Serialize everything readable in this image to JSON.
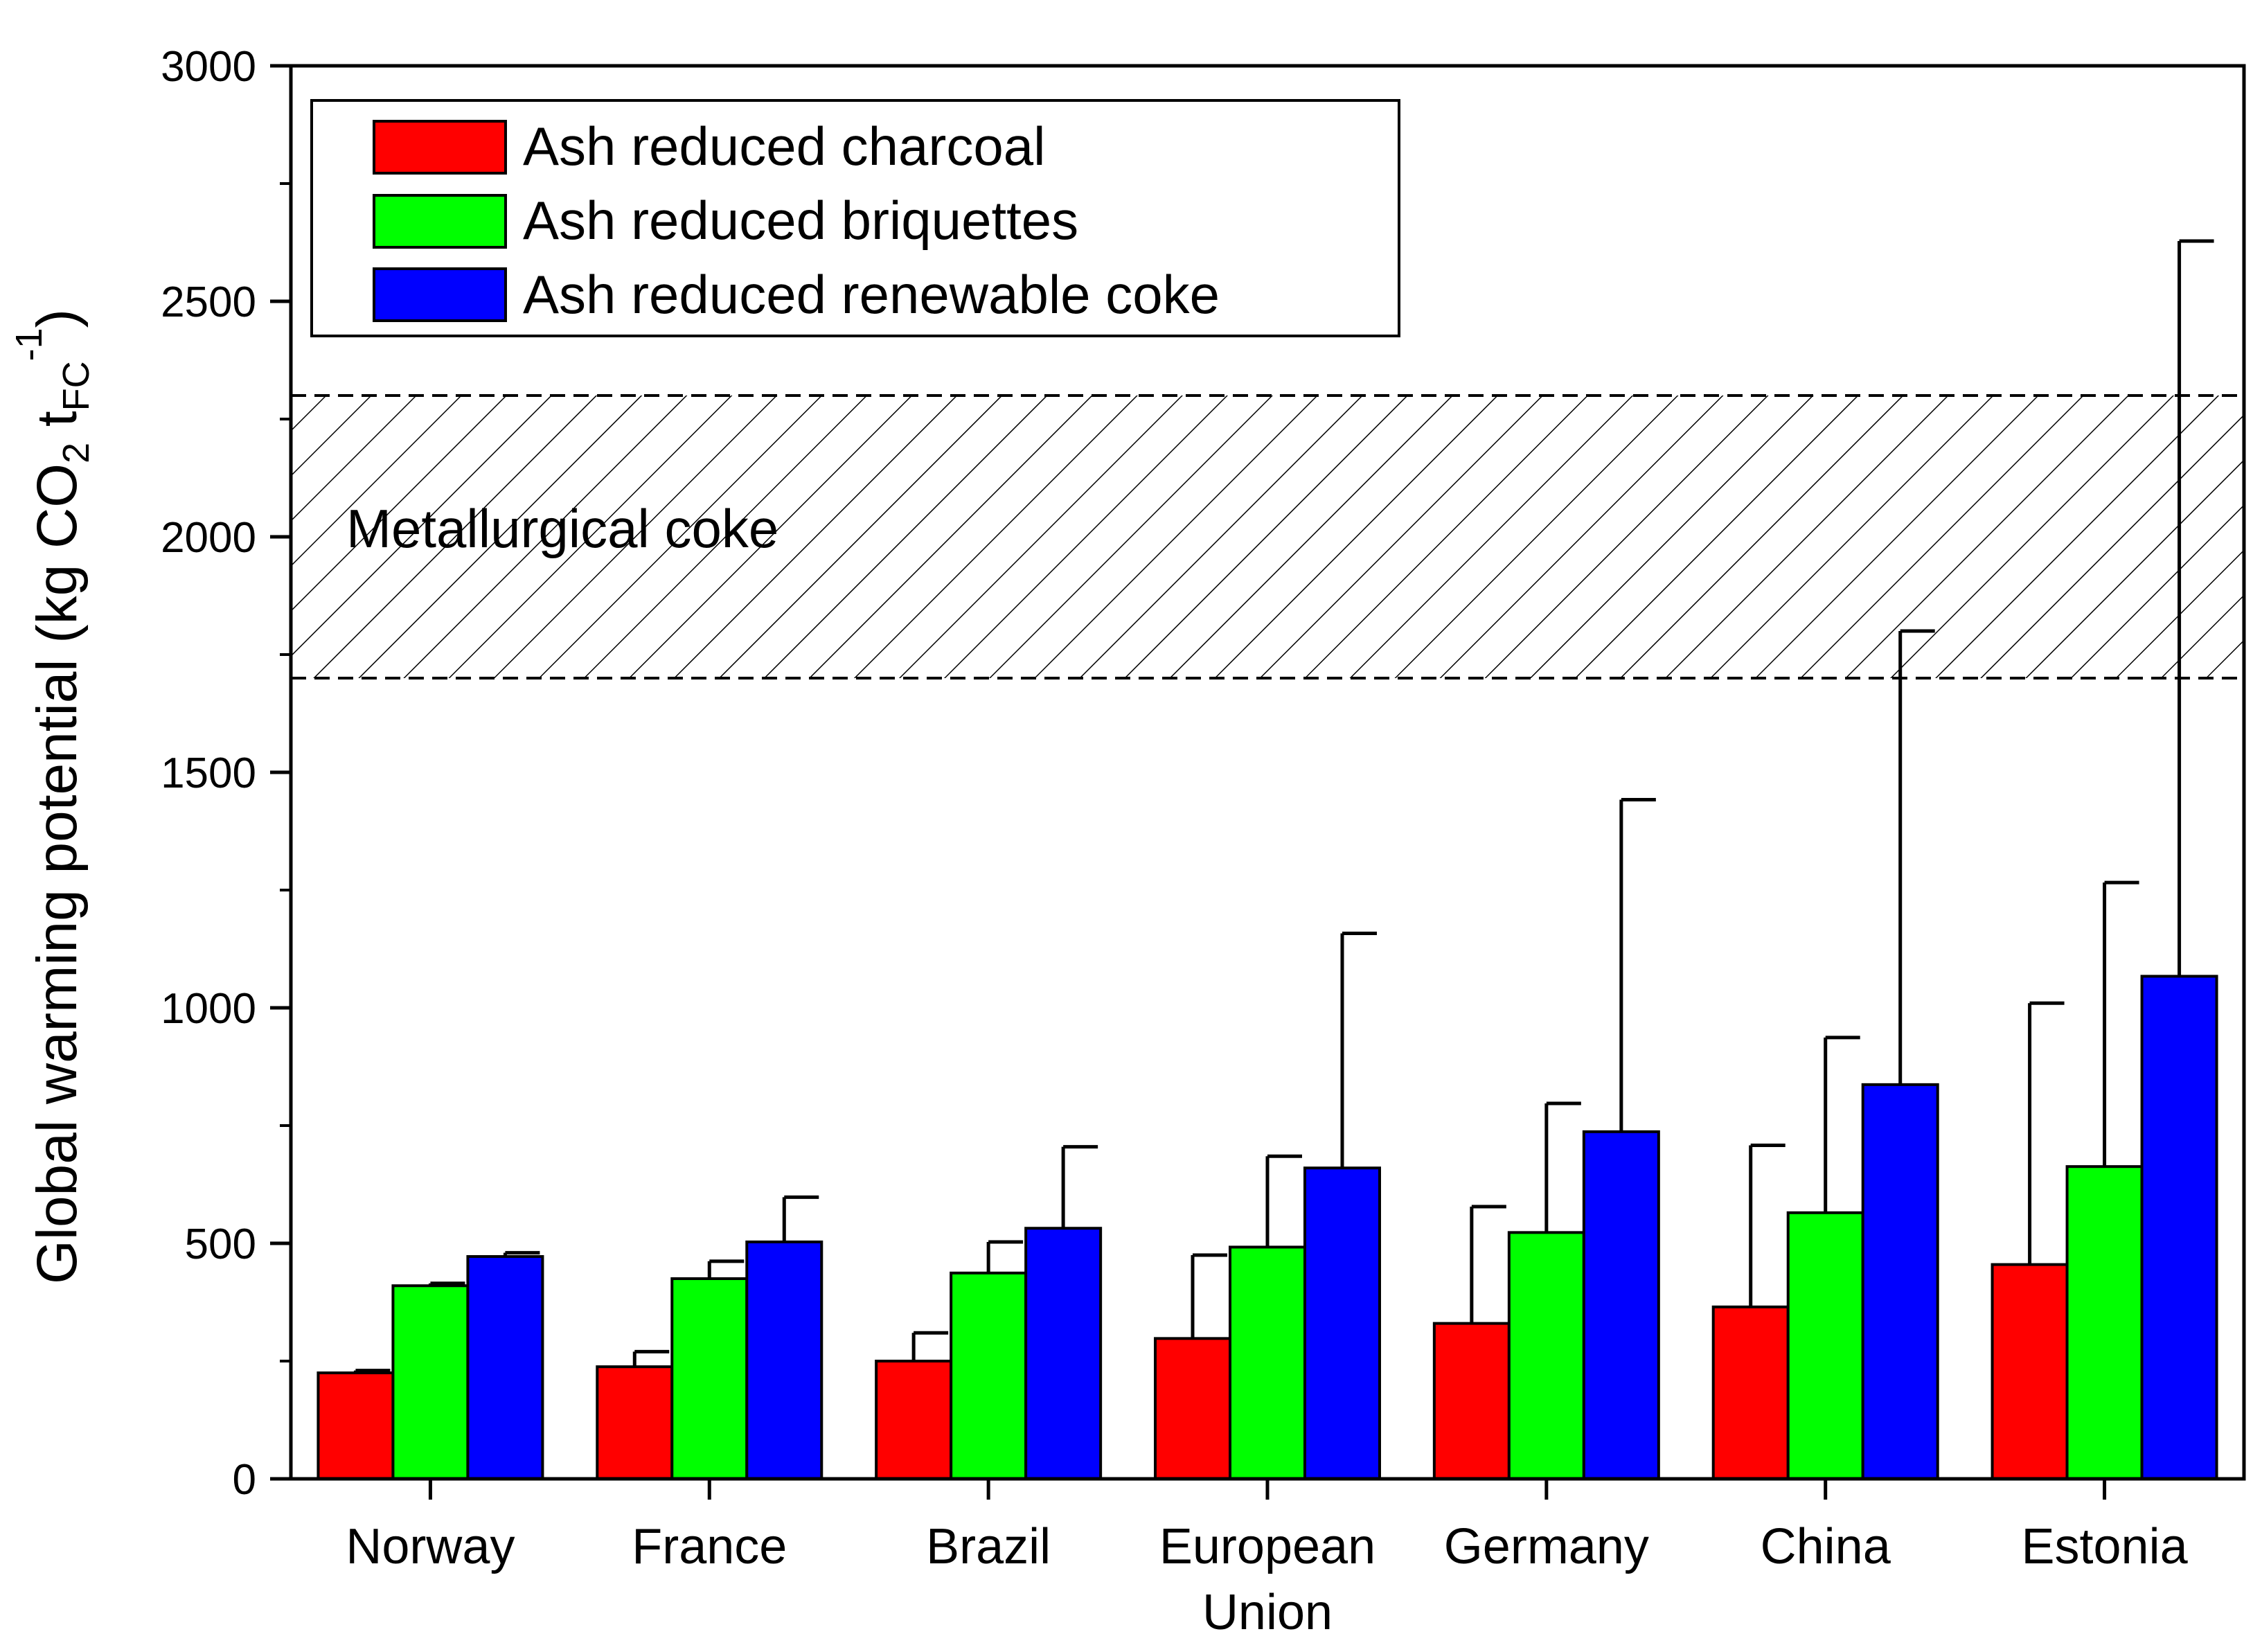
{
  "chart_data": {
    "type": "bar",
    "title": "",
    "xlabel": "",
    "ylabel": {
      "main": "Global warming potential (kg CO",
      "co2_sub": "2",
      "t": " t",
      "t_sub": "FC",
      "t_sup": "-1",
      "close": ")"
    },
    "ylim": [
      0,
      3000
    ],
    "yticks": [
      0,
      500,
      1000,
      1500,
      2000,
      2500,
      3000
    ],
    "categories": [
      [
        "Norway"
      ],
      [
        "France"
      ],
      [
        "Brazil"
      ],
      [
        "European",
        "Union"
      ],
      [
        "Germany"
      ],
      [
        "China"
      ],
      [
        "Estonia"
      ]
    ],
    "series": [
      {
        "name": "Ash reduced charcoal",
        "color": "#ff0000",
        "values": [
          225,
          238,
          250,
          298,
          330,
          365,
          455
        ],
        "error_upper": [
          230,
          270,
          310,
          475,
          578,
          708,
          1010
        ]
      },
      {
        "name": "Ash reduced briquettes",
        "color": "#00ff00",
        "values": [
          410,
          425,
          437,
          492,
          523,
          565,
          663
        ],
        "error_upper": [
          415,
          462,
          503,
          685,
          797,
          937,
          1266
        ]
      },
      {
        "name": "Ash reduced renewable coke",
        "color": "#0000ff",
        "values": [
          472,
          503,
          532,
          660,
          737,
          837,
          1067
        ],
        "error_upper": [
          480,
          598,
          705,
          1158,
          1442,
          1800,
          2628
        ]
      }
    ],
    "reference_band": {
      "label": "Metallurgical coke",
      "range": [
        1700,
        2300
      ],
      "pattern": "hatched"
    },
    "grid": false,
    "legend_position": "top-left"
  }
}
